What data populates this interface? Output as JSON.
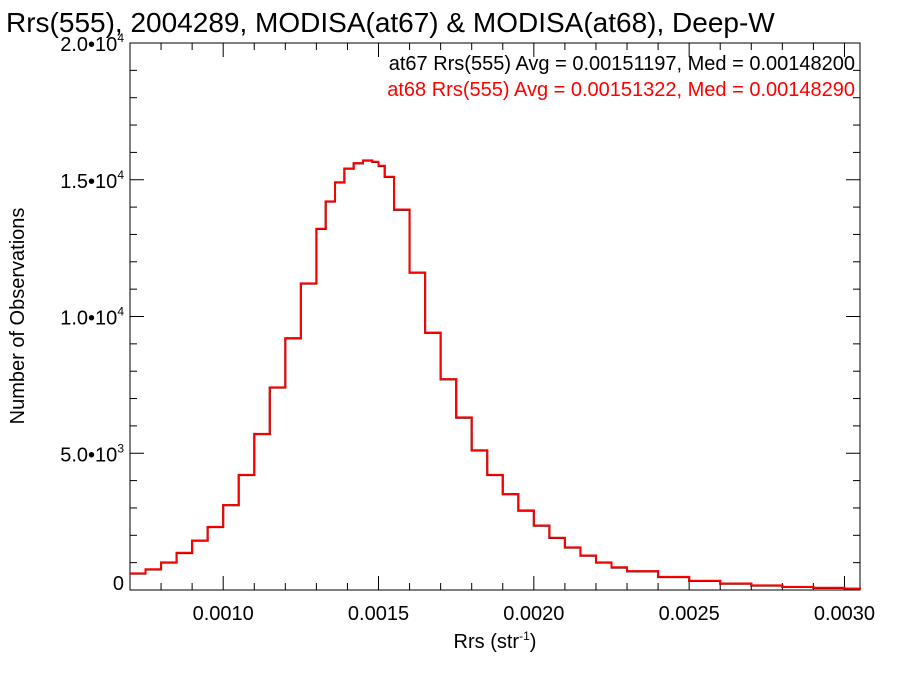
{
  "chart_data": {
    "type": "line",
    "title": "Rrs(555), 2004289, MODISA(at67) & MODISA(at68), Deep-W",
    "xlabel": {
      "text": "Rrs (str",
      "sup": "-1",
      "close": ")"
    },
    "ylabel": "Number of Observations",
    "xlim": [
      0.0007,
      0.00305
    ],
    "ylim": [
      0,
      20000
    ],
    "xticks": [
      {
        "value": 0.001,
        "label": "0.0010"
      },
      {
        "value": 0.0015,
        "label": "0.0015"
      },
      {
        "value": 0.002,
        "label": "0.0020"
      },
      {
        "value": 0.0025,
        "label": "0.0025"
      },
      {
        "value": 0.003,
        "label": "0.0030"
      }
    ],
    "yticks": [
      {
        "value": 0,
        "label": "0",
        "exp": ""
      },
      {
        "value": 5000,
        "label": "5.0•10",
        "exp": "3"
      },
      {
        "value": 10000,
        "label": "1.0•10",
        "exp": "4"
      },
      {
        "value": 15000,
        "label": "1.5•10",
        "exp": "4"
      },
      {
        "value": 20000,
        "label": "2.0•10",
        "exp": "4"
      }
    ],
    "grid": false,
    "legend_position": "top-right",
    "x": [
      0.0007,
      0.00075,
      0.0008,
      0.00085,
      0.0009,
      0.00095,
      0.001,
      0.00105,
      0.0011,
      0.00115,
      0.0012,
      0.00125,
      0.0013,
      0.00133,
      0.00136,
      0.00139,
      0.00142,
      0.00145,
      0.00148,
      0.0015,
      0.00152,
      0.00155,
      0.0016,
      0.00165,
      0.0017,
      0.00175,
      0.0018,
      0.00185,
      0.0019,
      0.00195,
      0.002,
      0.00205,
      0.0021,
      0.00215,
      0.0022,
      0.00225,
      0.0023,
      0.0024,
      0.0025,
      0.0026,
      0.0027,
      0.0028,
      0.0029,
      0.003,
      0.00305
    ],
    "series": [
      {
        "name": "at67 Rrs(555) Avg = 0.00151197, Med = 0.00148200",
        "color": "#000000",
        "values": [
          600,
          750,
          1000,
          1350,
          1800,
          2300,
          3100,
          4200,
          5700,
          7400,
          9200,
          11200,
          13200,
          14200,
          14900,
          15400,
          15600,
          15700,
          15650,
          15500,
          15100,
          13900,
          11600,
          9400,
          7700,
          6300,
          5100,
          4200,
          3500,
          2900,
          2350,
          1900,
          1550,
          1250,
          1000,
          820,
          680,
          470,
          330,
          230,
          160,
          110,
          75,
          45,
          30
        ]
      },
      {
        "name": "at68 Rrs(555) Avg = 0.00151322, Med = 0.00148290",
        "color": "#ff0000",
        "values": [
          610,
          760,
          1010,
          1360,
          1810,
          2310,
          3110,
          4210,
          5710,
          7410,
          9210,
          11210,
          13210,
          14210,
          14910,
          15410,
          15610,
          15710,
          15660,
          15510,
          15110,
          13910,
          11610,
          9410,
          7710,
          6310,
          5110,
          4210,
          3510,
          2910,
          2360,
          1910,
          1560,
          1260,
          1010,
          830,
          690,
          480,
          340,
          240,
          170,
          115,
          80,
          50,
          32
        ]
      }
    ]
  }
}
